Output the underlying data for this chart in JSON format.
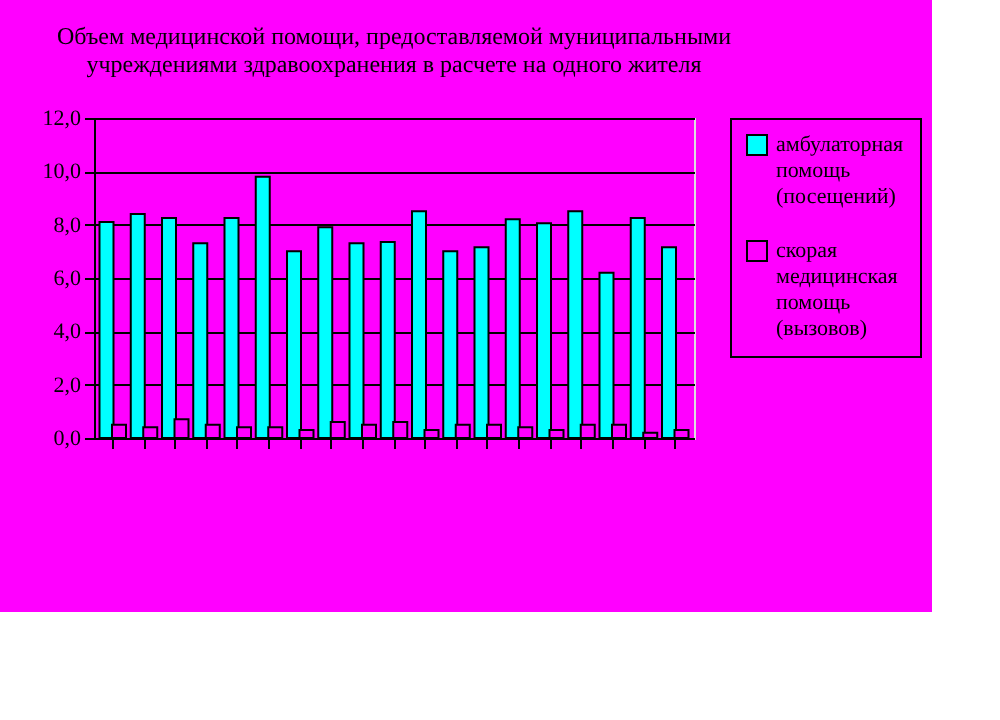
{
  "chart_data": {
    "type": "bar",
    "title": "Объем медицинской помощи, предоставляемой муниципальными учреждениями здравоохранения в расчете на одного жителя",
    "categories": [
      null,
      null,
      null,
      null,
      null,
      null,
      null,
      null,
      null,
      null,
      null,
      null,
      null,
      null,
      null,
      null,
      null,
      null,
      null
    ],
    "series": [
      {
        "name": "амбулаторная помощь (посещений)",
        "color": "#00ffff",
        "values": [
          8.1,
          8.4,
          8.25,
          7.3,
          8.25,
          9.8,
          7.0,
          7.9,
          7.3,
          7.35,
          8.5,
          7.0,
          7.15,
          8.2,
          8.05,
          8.5,
          6.2,
          8.25,
          7.15
        ]
      },
      {
        "name": "скорая медицинская помощь (вызовов)",
        "color": "#ff00ff",
        "values": [
          0.5,
          0.4,
          0.7,
          0.5,
          0.4,
          0.4,
          0.3,
          0.6,
          0.5,
          0.6,
          0.3,
          0.5,
          0.5,
          0.4,
          0.3,
          0.5,
          0.5,
          0.2,
          0.3
        ]
      }
    ],
    "ylim": [
      0,
      12
    ],
    "yticks": [
      {
        "value": 0,
        "label": "0,0"
      },
      {
        "value": 2,
        "label": "2,0"
      },
      {
        "value": 4,
        "label": "4,0"
      },
      {
        "value": 6,
        "label": "6,0"
      },
      {
        "value": 8,
        "label": "8,0"
      },
      {
        "value": 10,
        "label": "10,0"
      },
      {
        "value": 12,
        "label": "12,0"
      }
    ],
    "grid": "y",
    "legend": "right"
  }
}
